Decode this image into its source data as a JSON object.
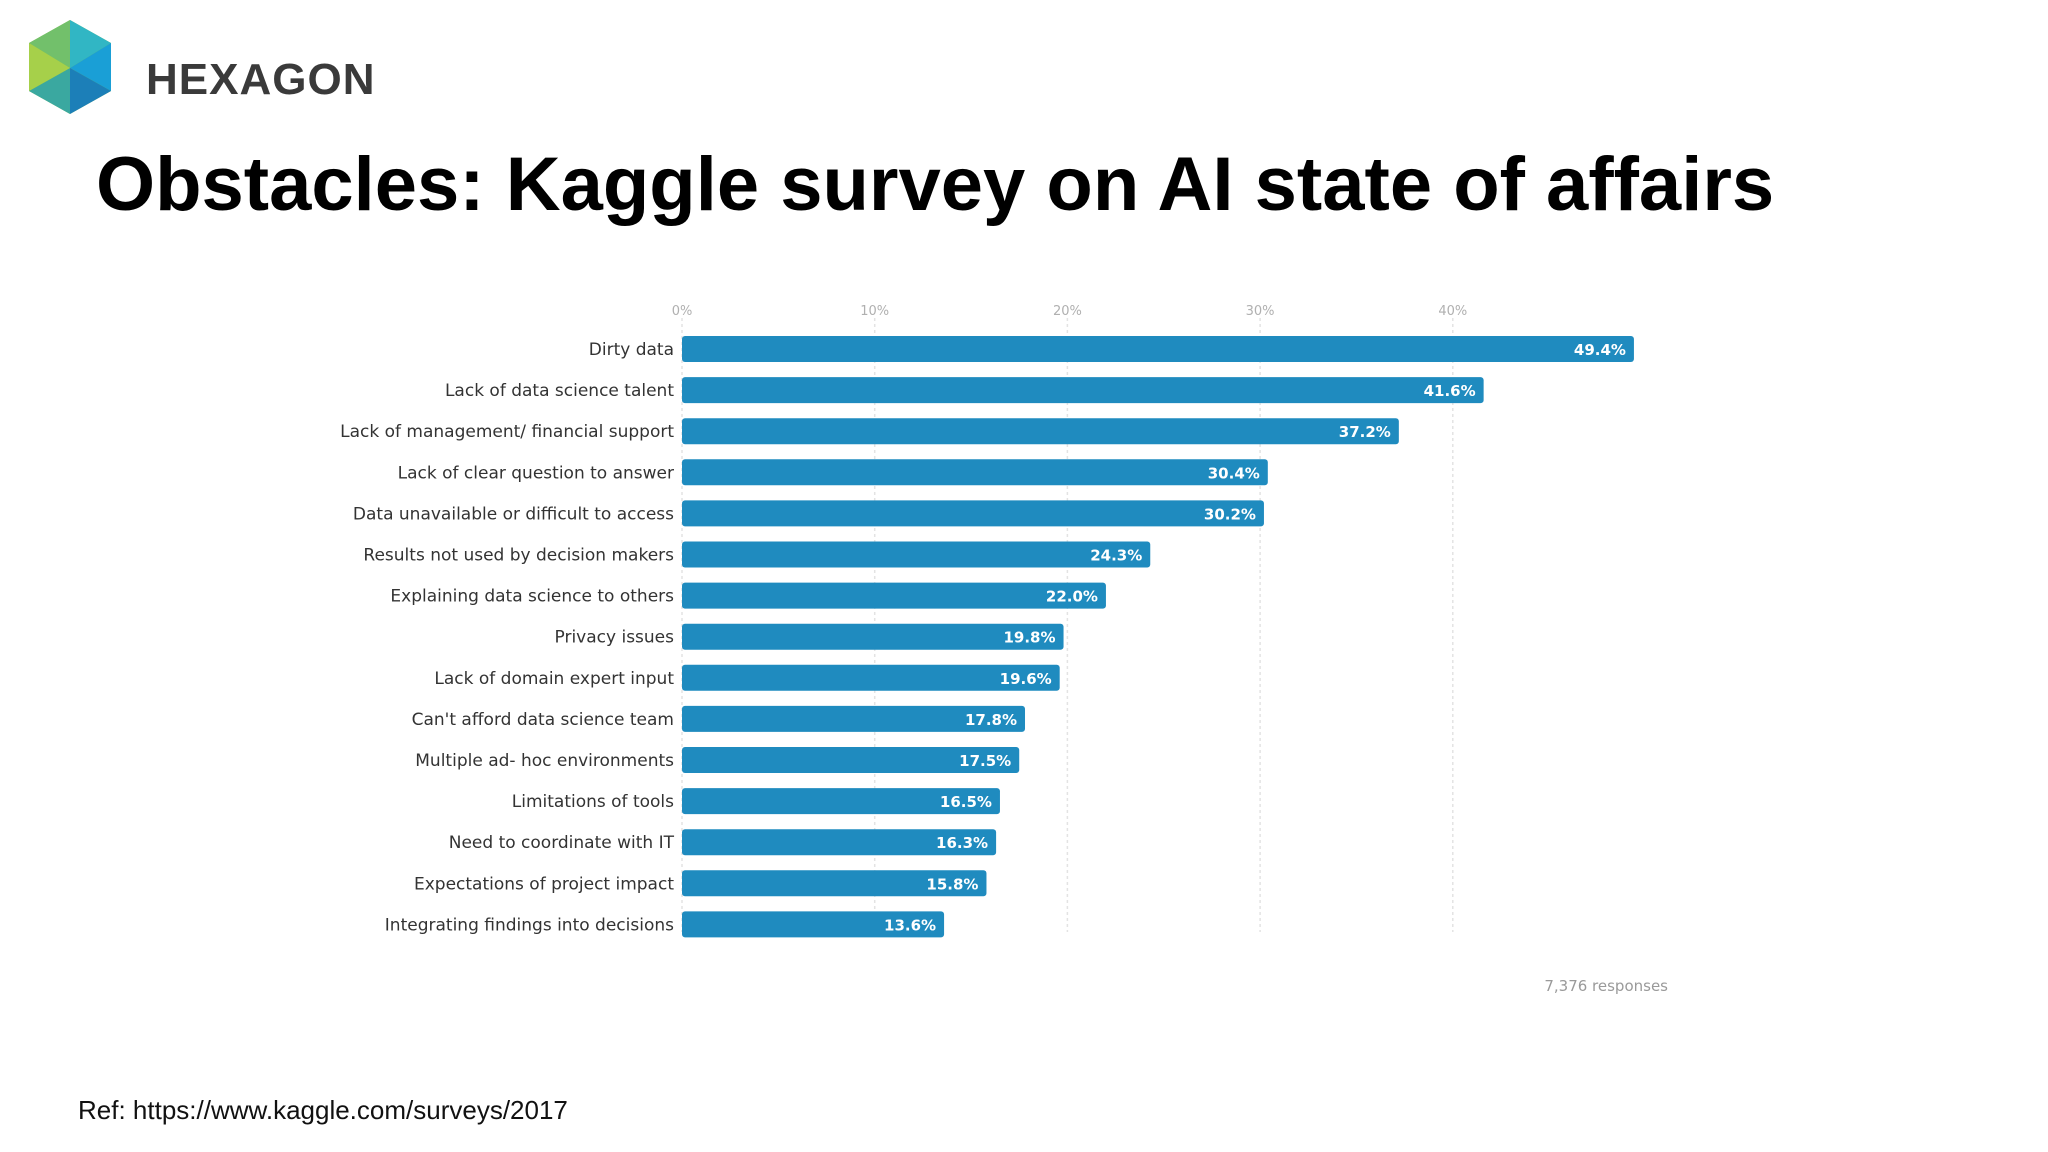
{
  "logo": {
    "text": "HEXAGON"
  },
  "title": "Obstacles: Kaggle survey on AI state of affairs",
  "reference": "Ref: https://www.kaggle.com/surveys/2017",
  "colors": {
    "bar": "#1f8bbf",
    "bar_label": "#ffffff",
    "category_label": "#333333",
    "tick": "#b0b0b0",
    "grid": "#e3e3e3",
    "footnote": "#9a9a9a"
  },
  "chart_data": {
    "type": "bar",
    "orientation": "horizontal",
    "categories": [
      "Dirty data",
      "Lack of data science talent",
      "Lack of management/ financial support",
      "Lack of clear question to answer",
      "Data unavailable or difficult to access",
      "Results not used by decision makers",
      "Explaining data science to others",
      "Privacy issues",
      "Lack of domain expert input",
      "Can't afford data science team",
      "Multiple ad- hoc environments",
      "Limitations of tools",
      "Need to coordinate with IT",
      "Expectations of project impact",
      "Integrating findings into decisions"
    ],
    "values": [
      49.4,
      41.6,
      37.2,
      30.4,
      30.2,
      24.3,
      22.0,
      19.8,
      19.6,
      17.8,
      17.5,
      16.5,
      16.3,
      15.8,
      13.6
    ],
    "value_labels": [
      "49.4%",
      "41.6%",
      "37.2%",
      "30.4%",
      "30.2%",
      "24.3%",
      "22.0%",
      "19.8%",
      "19.6%",
      "17.8%",
      "17.5%",
      "16.5%",
      "16.3%",
      "15.8%",
      "13.6%"
    ],
    "xticks": [
      "0%",
      "10%",
      "20%",
      "30%",
      "40%"
    ],
    "xtick_values": [
      0,
      10,
      20,
      30,
      40
    ],
    "xlim": [
      0,
      50
    ],
    "xaxis_position": "top",
    "grid": true,
    "footnote": "7,376 responses"
  }
}
